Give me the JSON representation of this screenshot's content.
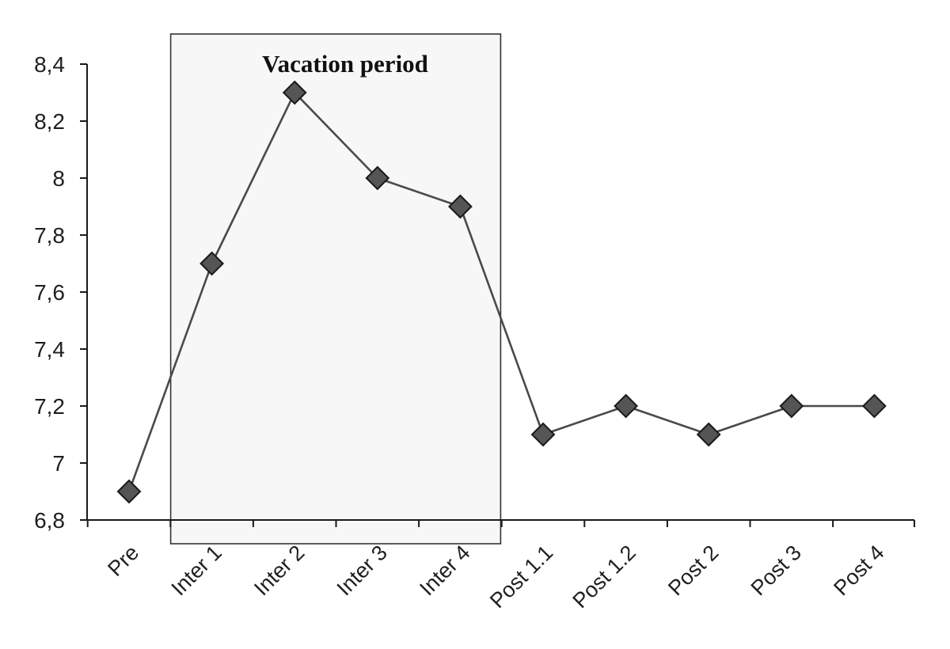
{
  "chart_data": {
    "type": "line",
    "title": "",
    "xlabel": "",
    "ylabel": "",
    "categories": [
      "Pre",
      "Inter 1",
      "Inter 2",
      "Inter 3",
      "Inter 4",
      "Post 1.1",
      "Post 1.2",
      "Post 2",
      "Post 3",
      "Post 4"
    ],
    "series": [
      {
        "values": [
          6.9,
          7.7,
          8.3,
          8.0,
          7.9,
          7.1,
          7.2,
          7.1,
          7.2,
          7.2
        ],
        "color": "#4a4a4a",
        "marker": "diamond",
        "marker_color": "#555555"
      }
    ],
    "ylim": [
      6.8,
      8.4
    ],
    "yticks": [
      6.8,
      7.0,
      7.2,
      7.4,
      7.6,
      7.8,
      8.0,
      8.2,
      8.4
    ],
    "ytick_labels": [
      "6,8",
      "7",
      "7,2",
      "7,4",
      "7,6",
      "7,8",
      "8",
      "8,2",
      "8,4"
    ],
    "grid": false,
    "legend": "none",
    "annotations": [
      {
        "text": "Vacation period",
        "type": "shaded-region",
        "from_category": "Inter 1",
        "to_category": "Inter 4",
        "fill": "#f7f7f7",
        "stroke": "#333333"
      }
    ]
  }
}
